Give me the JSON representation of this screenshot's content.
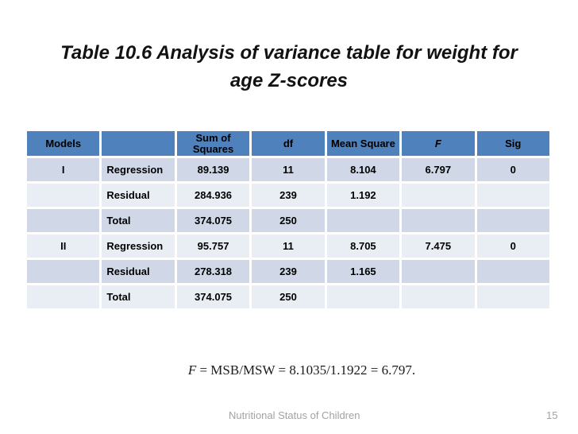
{
  "title": {
    "line1": "Table 10.6 Analysis of variance table for weight for",
    "line2": "age Z-scores"
  },
  "table": {
    "headers": [
      {
        "lines": [
          "Models"
        ],
        "italic": false
      },
      {
        "lines": [
          ""
        ],
        "italic": false
      },
      {
        "lines": [
          "Sum of",
          "Squares"
        ],
        "italic": false
      },
      {
        "lines": [
          "df"
        ],
        "italic": false
      },
      {
        "lines": [
          "Mean Square"
        ],
        "italic": false
      },
      {
        "lines": [
          "F"
        ],
        "italic": true
      },
      {
        "lines": [
          "Sig"
        ],
        "italic": false
      }
    ],
    "rows": [
      [
        "I",
        "Regression",
        "89.139",
        "11",
        "8.104",
        "6.797",
        "0"
      ],
      [
        "",
        "Residual",
        "284.936",
        "239",
        "1.192",
        "",
        ""
      ],
      [
        "",
        "Total",
        "374.075",
        "250",
        "",
        "",
        ""
      ],
      [
        "II",
        "Regression",
        "95.757",
        "11",
        "8.705",
        "7.475",
        "0"
      ],
      [
        "",
        "Residual",
        "278.318",
        "239",
        "1.165",
        "",
        ""
      ],
      [
        "",
        "Total",
        "374.075",
        "250",
        "",
        "",
        ""
      ]
    ]
  },
  "formula": {
    "lhs": "F",
    "rest": " = MSB/MSW = 8.1035/1.1922 = 6.797."
  },
  "footer": {
    "text": "Nutritional Status of Children",
    "page_number": "15"
  },
  "colors": {
    "header_bg": "#4f81bd",
    "band_dark": "#d0d8e8",
    "band_light": "#e9edf4",
    "title_text": "#121212",
    "footer_gray": "#a3a3a3"
  }
}
